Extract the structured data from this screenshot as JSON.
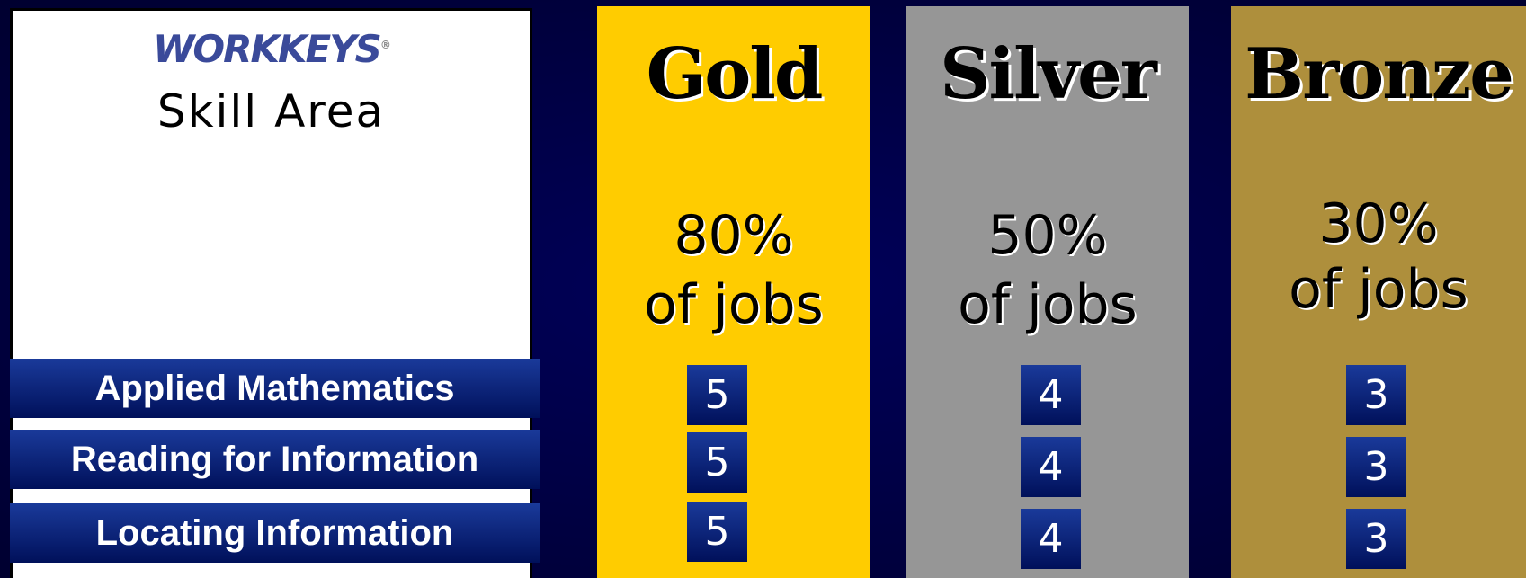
{
  "logo": "WORKKEYS",
  "header": "Skill Area",
  "skills": [
    "Applied Mathematics",
    "Reading for Information",
    "Locating Information"
  ],
  "levels": [
    {
      "name": "Gold",
      "percent": "80%",
      "label": "of jobs",
      "scores": [
        5,
        5,
        5
      ]
    },
    {
      "name": "Silver",
      "percent": "50%",
      "label": "of jobs",
      "scores": [
        4,
        4,
        4
      ]
    },
    {
      "name": "Bronze",
      "percent": "30%",
      "label": "of jobs",
      "scores": [
        3,
        3,
        3
      ]
    }
  ]
}
